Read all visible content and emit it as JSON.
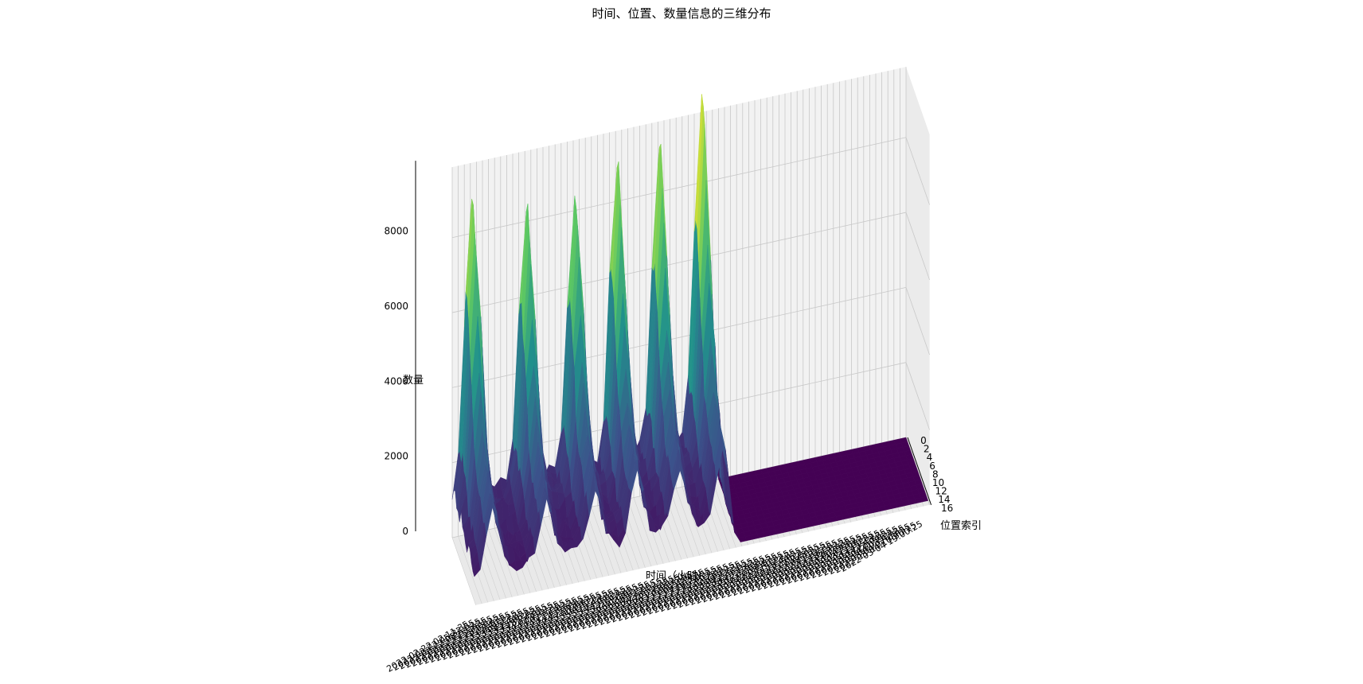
{
  "chart_data": {
    "type": "surface3d",
    "title": "时间、位置、数量信息的三维分布",
    "xlabel": "时间（小时）",
    "ylabel": "位置索引",
    "zlabel": "数量",
    "zlim": [
      0,
      9500
    ],
    "z_ticks": [
      "0",
      "2000",
      "4000",
      "6000",
      "8000"
    ],
    "y_ticks": [
      "0",
      "2",
      "4",
      "6",
      "8",
      "10",
      "12",
      "14",
      "16"
    ],
    "x_tick_labels": [
      "2022-02-22 02:11:35",
      "2022-02-22 05:32:55",
      "2022-02-22 08:54:15",
      "2022-02-22 12:15:35",
      "2022-02-22 15:36:55",
      "2022-02-22 18:58:15",
      "2022-02-22 22:19:35",
      "2022-02-23 01:40:55",
      "2022-02-23 05:02:15",
      "2022-02-23 08:23:35",
      "2022-02-23 11:44:55",
      "2022-02-23 15:06:15",
      "2022-02-23 18:27:35",
      "2022-02-23 21:48:55",
      "2022-02-24 01:10:15",
      "2022-02-24 04:31:35",
      "2022-02-24 07:52:55",
      "2022-02-24 11:14:15",
      "2022-02-24 14:35:35",
      "2022-02-24 17:56:55",
      "2022-02-24 21:18:15",
      "2022-02-25 00:39:35",
      "2022-02-25 04:00:55",
      "2022-02-25 07:22:15",
      "2022-02-25 10:43:35",
      "2022-02-25 14:04:55",
      "2022-02-25 17:26:15",
      "2022-02-25 20:47:35",
      "2022-02-26 00:08:55",
      "2022-02-26 03:30:15",
      "2022-02-26 06:51:35",
      "2022-02-26 10:12:55",
      "2022-02-26 13:34:15",
      "2022-02-26 16:55:35",
      "2022-02-26 20:16:55",
      "2022-02-26 23:38:15",
      "2022-02-27 02:59:35",
      "2022-02-27 06:20:55",
      "2022-02-27 09:42:15",
      "2022-02-27 13:03:35",
      "2022-02-27 16:24:55",
      "2022-02-27 19:46:15",
      "2022-02-27 23:07:35",
      "2022-02-28 02:28:55",
      "2022-02-28 05:50:15",
      "2022-02-28 09:11:35",
      "2022-02-28 12:32:55",
      "2022-02-28 15:54:15",
      "2022-02-28 19:15:35",
      "2022-02-28 22:36:55",
      "2022-03-01 01:58:15",
      "2022-03-01 05:19:35",
      "2022-03-01 08:40:55",
      "2022-03-01 12:02:15",
      "2022-03-01 15:23:35",
      "2022-03-01 18:44:55",
      "2022-03-01 22:06:15",
      "2022-03-02 01:27:35",
      "2022-03-02 04:48:55",
      "2022-03-02 08:10:15",
      "2022-03-02 11:31:35",
      "2022-03-02 14:52:55",
      "2022-03-02 18:14:15",
      "2022-03-02 21:35:35",
      "2022-03-03 00:56:55",
      "2022-03-03 04:18:15",
      "2022-03-03 07:39:35",
      "2022-03-03 11:00:55",
      "2022-03-03 14:22:15",
      "2022-03-03 17:43:35",
      "2022-03-03 21:04:55",
      "2022-03-04 00:26:15",
      "2022-03-04 03:47:35",
      "2022-03-04 07:08:55",
      "2022-03-04 10:30:15",
      "2022-03-04 19:00:25"
    ],
    "peaks": [
      {
        "time_index": 3,
        "value": 8500
      },
      {
        "time_index": 12,
        "value": 7800
      },
      {
        "time_index": 20,
        "value": 7900
      },
      {
        "time_index": 27,
        "value": 8400
      },
      {
        "time_index": 34,
        "value": 8500
      },
      {
        "time_index": 41,
        "value": 9600
      }
    ],
    "position_count": 16,
    "nonzero_time_range": [
      0,
      43
    ],
    "colormap": "viridis",
    "colors": [
      "#440154",
      "#3b528b",
      "#21918c",
      "#5ec962",
      "#fde725"
    ]
  }
}
